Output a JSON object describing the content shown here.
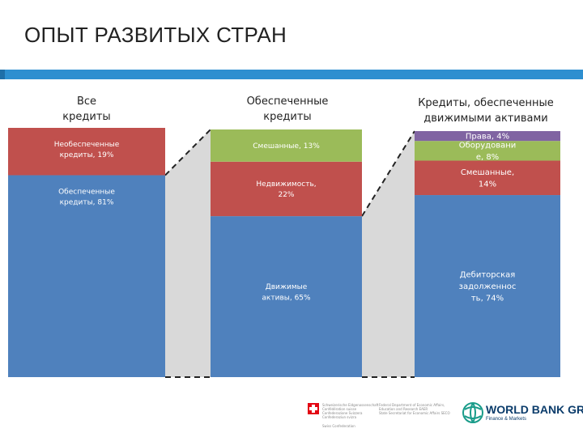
{
  "title": "ОПЫТ РАЗВИТЫХ СТРАН",
  "colors": {
    "accent": "#2e8fd0",
    "blue": "#4f81bd",
    "red": "#c0504d",
    "green": "#9bbb59",
    "purple": "#8064a2",
    "connector": "#d9d9d9"
  },
  "columns": [
    {
      "header": "Все\nкредиты"
    },
    {
      "header": "Обеспеченные\nкредиты"
    },
    {
      "header": "Кредиты, обеспеченные\nдвижимыми активами"
    }
  ],
  "chart_data": {
    "type": "bar",
    "stacked": true,
    "normalized": true,
    "categories": [
      "Все кредиты",
      "Обеспеченные кредиты",
      "Кредиты, обеспеченные движимыми активами"
    ],
    "bars": [
      {
        "segments": [
          {
            "label": "Обеспеченные\nкредиты, 81%",
            "value": 81,
            "color": "blue"
          },
          {
            "label": "Необеспеченные\nкредиты, 19%",
            "value": 19,
            "color": "red"
          }
        ]
      },
      {
        "segments": [
          {
            "label": "Движимые\nактивы, 65%",
            "value": 65,
            "color": "blue"
          },
          {
            "label": "Недвижимость,\n22%",
            "value": 22,
            "color": "red"
          },
          {
            "label": "Смешанные, 13%",
            "value": 13,
            "color": "green"
          }
        ]
      },
      {
        "segments": [
          {
            "label": "Дебиторская\nзадолженнос\nть, 74%",
            "value": 74,
            "color": "blue"
          },
          {
            "label": "Смешанные,\n14%",
            "value": 14,
            "color": "red"
          },
          {
            "label": "Оборудовани\nе, 8%",
            "value": 8,
            "color": "green"
          },
          {
            "label": "Права, 4%",
            "value": 4,
            "color": "purple"
          }
        ]
      }
    ]
  },
  "footer": {
    "swiss_lines": [
      "Schweizerische Eidgenossenschaft",
      "Confédération suisse",
      "Confederazione Svizzera",
      "Confederaziun svizra"
    ],
    "swiss_sub": "Swiss Confederation",
    "seco_lines": [
      "Federal Department of Economic Affairs,",
      "Education and Research EAER",
      "State Secretariat for Economic Affairs SECO"
    ],
    "wb_name": "WORLD BANK GROUP",
    "wb_sub": "Finance & Markets"
  }
}
